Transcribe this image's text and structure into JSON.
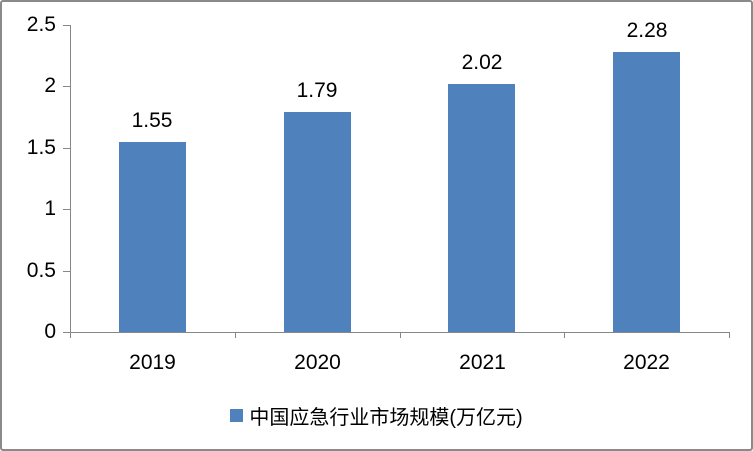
{
  "chart_data": {
    "type": "bar",
    "title": "",
    "categories": [
      "2019",
      "2020",
      "2021",
      "2022"
    ],
    "values": [
      1.55,
      1.79,
      2.02,
      2.28
    ],
    "data_labels": [
      "1.55",
      "1.79",
      "2.02",
      "2.28"
    ],
    "yticks": [
      0,
      0.5,
      1,
      1.5,
      2,
      2.5
    ],
    "ylim": [
      0,
      2.5
    ],
    "xlabel": "",
    "ylabel": "",
    "grid": false,
    "legend": [
      "中国应急行业市场规模(万亿元)"
    ],
    "legend_position": "bottom",
    "bar_color": "#4F81BD",
    "axis_color": "#878787",
    "text_color": "#000000",
    "frame_border_color": "#8A8A8A",
    "background": "#FFFFFF"
  }
}
